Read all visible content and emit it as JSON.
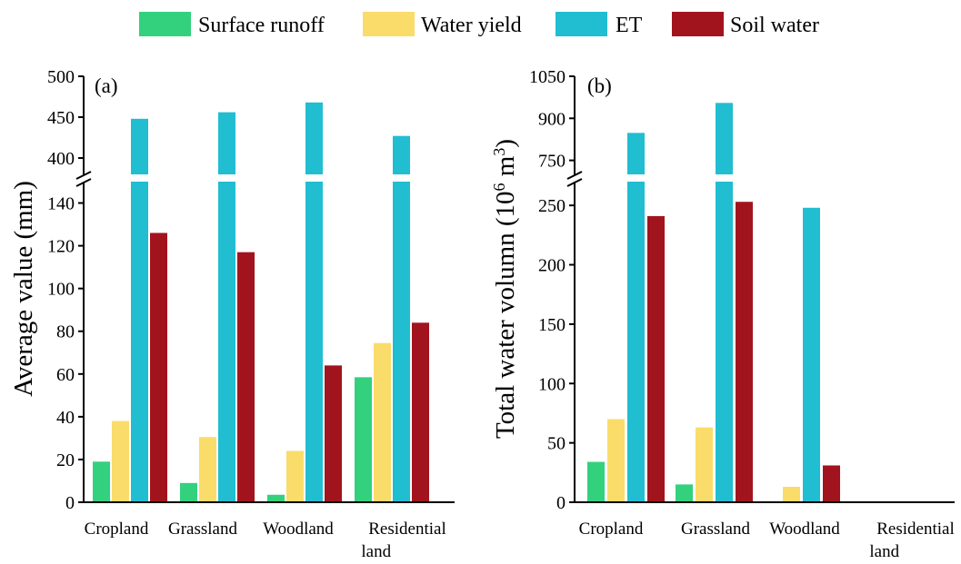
{
  "legend": [
    {
      "label": "Surface runoff",
      "color": "#33d17e"
    },
    {
      "label": "Water yield",
      "color": "#fadc6a"
    },
    {
      "label": "ET",
      "color": "#21bdd1"
    },
    {
      "label": "Soil water",
      "color": "#a2141d"
    }
  ],
  "chart_data": [
    {
      "type": "bar",
      "panel_label": "(a)",
      "ylabel": "Average value (mm)",
      "categories": [
        [
          "Cropland"
        ],
        [
          "Grassland"
        ],
        [
          "Woodland"
        ],
        [
          "Residential",
          "land"
        ]
      ],
      "y_break": true,
      "ylim_lower": [
        0,
        150
      ],
      "ylim_upper": [
        380,
        500
      ],
      "yticks_lower": [
        "0",
        "20",
        "40",
        "60",
        "80",
        "100",
        "120",
        "140"
      ],
      "yticks_upper": [
        "400",
        "450",
        "500"
      ],
      "series": [
        {
          "name": "Surface runoff",
          "values": [
            19,
            9,
            3.5,
            58.5
          ]
        },
        {
          "name": "Water yield",
          "values": [
            38,
            30.5,
            24,
            74.5
          ]
        },
        {
          "name": "ET",
          "values": [
            448,
            456,
            468,
            427
          ]
        },
        {
          "name": "Soil water",
          "values": [
            126,
            117,
            64,
            84
          ]
        }
      ]
    },
    {
      "type": "bar",
      "panel_label": "(b)",
      "ylabel": "Total water volumn (10^6 m^3)",
      "categories": [
        [
          "Cropland"
        ],
        [
          "Grassland"
        ],
        [
          "Woodland"
        ],
        [
          "Residential",
          "land"
        ]
      ],
      "y_break": true,
      "ylim_lower": [
        0,
        270
      ],
      "ylim_upper": [
        700,
        1050
      ],
      "yticks_lower": [
        "0",
        "50",
        "100",
        "150",
        "200",
        "250"
      ],
      "yticks_upper": [
        "750",
        "900",
        "1050"
      ],
      "series": [
        {
          "name": "Surface runoff",
          "values": [
            34,
            15,
            0,
            0
          ]
        },
        {
          "name": "Water yield",
          "values": [
            70,
            63,
            13,
            0
          ]
        },
        {
          "name": "ET",
          "values": [
            848,
            955,
            248,
            0
          ]
        },
        {
          "name": "Soil water",
          "values": [
            241,
            253,
            31,
            0
          ]
        }
      ]
    }
  ]
}
